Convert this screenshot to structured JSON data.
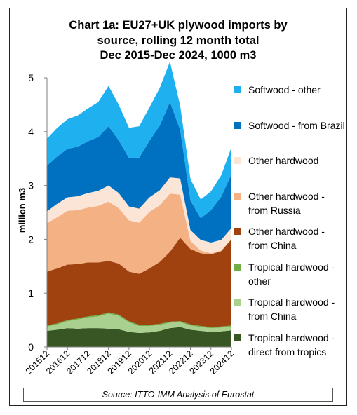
{
  "chart_data": {
    "type": "area",
    "stacked": true,
    "title_lines": [
      "Chart 1a: EU27+UK plywood imports by",
      "source, rolling 12 month total",
      "Dec 2015-Dec 2024, 1000 m3"
    ],
    "ylabel": "million m3",
    "ylim": [
      0,
      5
    ],
    "yticks": [
      "0",
      "1",
      "2",
      "3",
      "4",
      "5"
    ],
    "x_tick_labels": [
      "201512",
      "201612",
      "201712",
      "201812",
      "201912",
      "202012",
      "202112",
      "202212",
      "202312",
      "202412"
    ],
    "x": [
      "201512",
      "201606",
      "201612",
      "201706",
      "201712",
      "201806",
      "201812",
      "201906",
      "201912",
      "202006",
      "202012",
      "202106",
      "202112",
      "202206",
      "202212",
      "202306",
      "202312",
      "202406",
      "202412"
    ],
    "series": [
      {
        "name": "Tropical hardwood - direct from tropics",
        "color": "#375623",
        "values": [
          0.3,
          0.32,
          0.35,
          0.34,
          0.35,
          0.35,
          0.34,
          0.33,
          0.28,
          0.26,
          0.27,
          0.3,
          0.35,
          0.37,
          0.32,
          0.3,
          0.28,
          0.29,
          0.31
        ]
      },
      {
        "name": "Tropical hardwood - from China",
        "color": "#a9d08e",
        "values": [
          0.08,
          0.1,
          0.13,
          0.17,
          0.2,
          0.22,
          0.28,
          0.25,
          0.18,
          0.13,
          0.12,
          0.11,
          0.1,
          0.09,
          0.08,
          0.07,
          0.07,
          0.07,
          0.07
        ]
      },
      {
        "name": "Tropical hardwood - other",
        "color": "#70ad47",
        "values": [
          0.02,
          0.02,
          0.02,
          0.02,
          0.02,
          0.02,
          0.02,
          0.02,
          0.02,
          0.02,
          0.02,
          0.02,
          0.02,
          0.02,
          0.02,
          0.02,
          0.02,
          0.02,
          0.02
        ]
      },
      {
        "name": "Other hardwood - from China",
        "color": "#a0420f",
        "values": [
          1.0,
          1.02,
          1.03,
          1.01,
          1.0,
          0.98,
          0.96,
          0.95,
          0.92,
          0.95,
          1.05,
          1.15,
          1.3,
          1.55,
          1.4,
          1.35,
          1.35,
          1.4,
          1.6
        ]
      },
      {
        "name": "Other hardwood - from Russia",
        "color": "#f4b183",
        "values": [
          0.9,
          0.95,
          1.0,
          1.0,
          1.02,
          1.05,
          1.1,
          1.03,
          0.95,
          0.95,
          1.05,
          1.05,
          1.08,
          0.8,
          0.15,
          0.05,
          0.02,
          0.01,
          0.01
        ]
      },
      {
        "name": "Other hardwood",
        "color": "#fbe5d6",
        "values": [
          0.22,
          0.25,
          0.25,
          0.26,
          0.27,
          0.28,
          0.3,
          0.28,
          0.26,
          0.26,
          0.27,
          0.28,
          0.3,
          0.3,
          0.2,
          0.2,
          0.2,
          0.2,
          0.2
        ]
      },
      {
        "name": "Softwood - from Brazil",
        "color": "#0070c0",
        "values": [
          0.85,
          0.88,
          0.9,
          0.92,
          0.96,
          1.0,
          1.1,
          0.98,
          0.9,
          0.95,
          1.05,
          1.2,
          1.4,
          0.9,
          0.55,
          0.4,
          0.6,
          0.8,
          1.0
        ]
      },
      {
        "name": "Softwood - other",
        "color": "#1fb0f0",
        "values": [
          0.5,
          0.53,
          0.55,
          0.58,
          0.61,
          0.65,
          0.75,
          0.66,
          0.56,
          0.58,
          0.62,
          0.7,
          0.75,
          0.45,
          0.4,
          0.35,
          0.35,
          0.4,
          0.5
        ]
      }
    ],
    "legend_position": "right",
    "grid": false
  },
  "source_text": "Source: ITTO-IMM Analysis of Eurostat"
}
